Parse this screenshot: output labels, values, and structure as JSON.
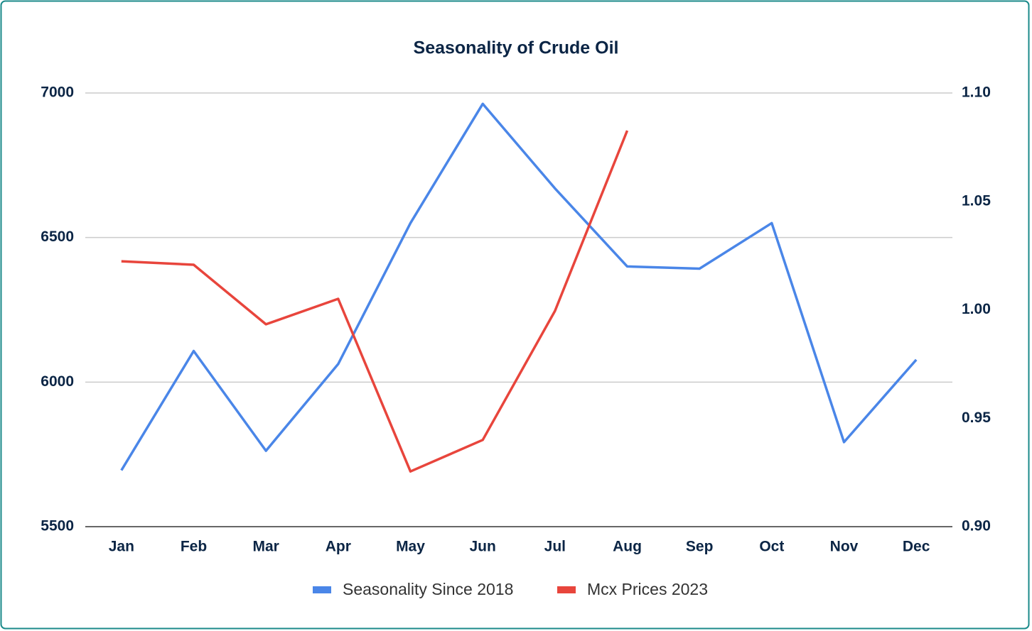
{
  "chart_data": {
    "type": "line",
    "title": "Seasonality of Crude Oil",
    "categories": [
      "Jan",
      "Feb",
      "Mar",
      "Apr",
      "May",
      "Jun",
      "Jul",
      "Aug",
      "Sep",
      "Oct",
      "Nov",
      "Dec"
    ],
    "series": [
      {
        "name": "Seasonality Since 2018",
        "color": "#4a86e8",
        "axis": "y2",
        "values": [
          0.926,
          0.981,
          0.935,
          0.975,
          1.04,
          1.095,
          1.056,
          1.02,
          1.019,
          1.04,
          0.939,
          0.977
        ]
      },
      {
        "name": "Mcx Prices 2023",
        "color": "#e8453c",
        "values": [
          6418,
          6406,
          6200,
          6288,
          5691,
          5800,
          6246,
          6870,
          null,
          null,
          null,
          null
        ]
      }
    ],
    "ylim": [
      5500,
      7000
    ],
    "yticks": [
      5500,
      6000,
      6500,
      7000
    ],
    "y2lim": [
      0.9,
      1.1
    ],
    "y2ticks": [
      {
        "value": 0.9,
        "label": "0.90"
      },
      {
        "value": 0.95,
        "label": "0.95"
      },
      {
        "value": 1.0,
        "label": "1.00"
      },
      {
        "value": 1.05,
        "label": "1.05"
      },
      {
        "value": 1.1,
        "label": "1.10"
      }
    ],
    "grid": true,
    "legend": "bottom"
  }
}
